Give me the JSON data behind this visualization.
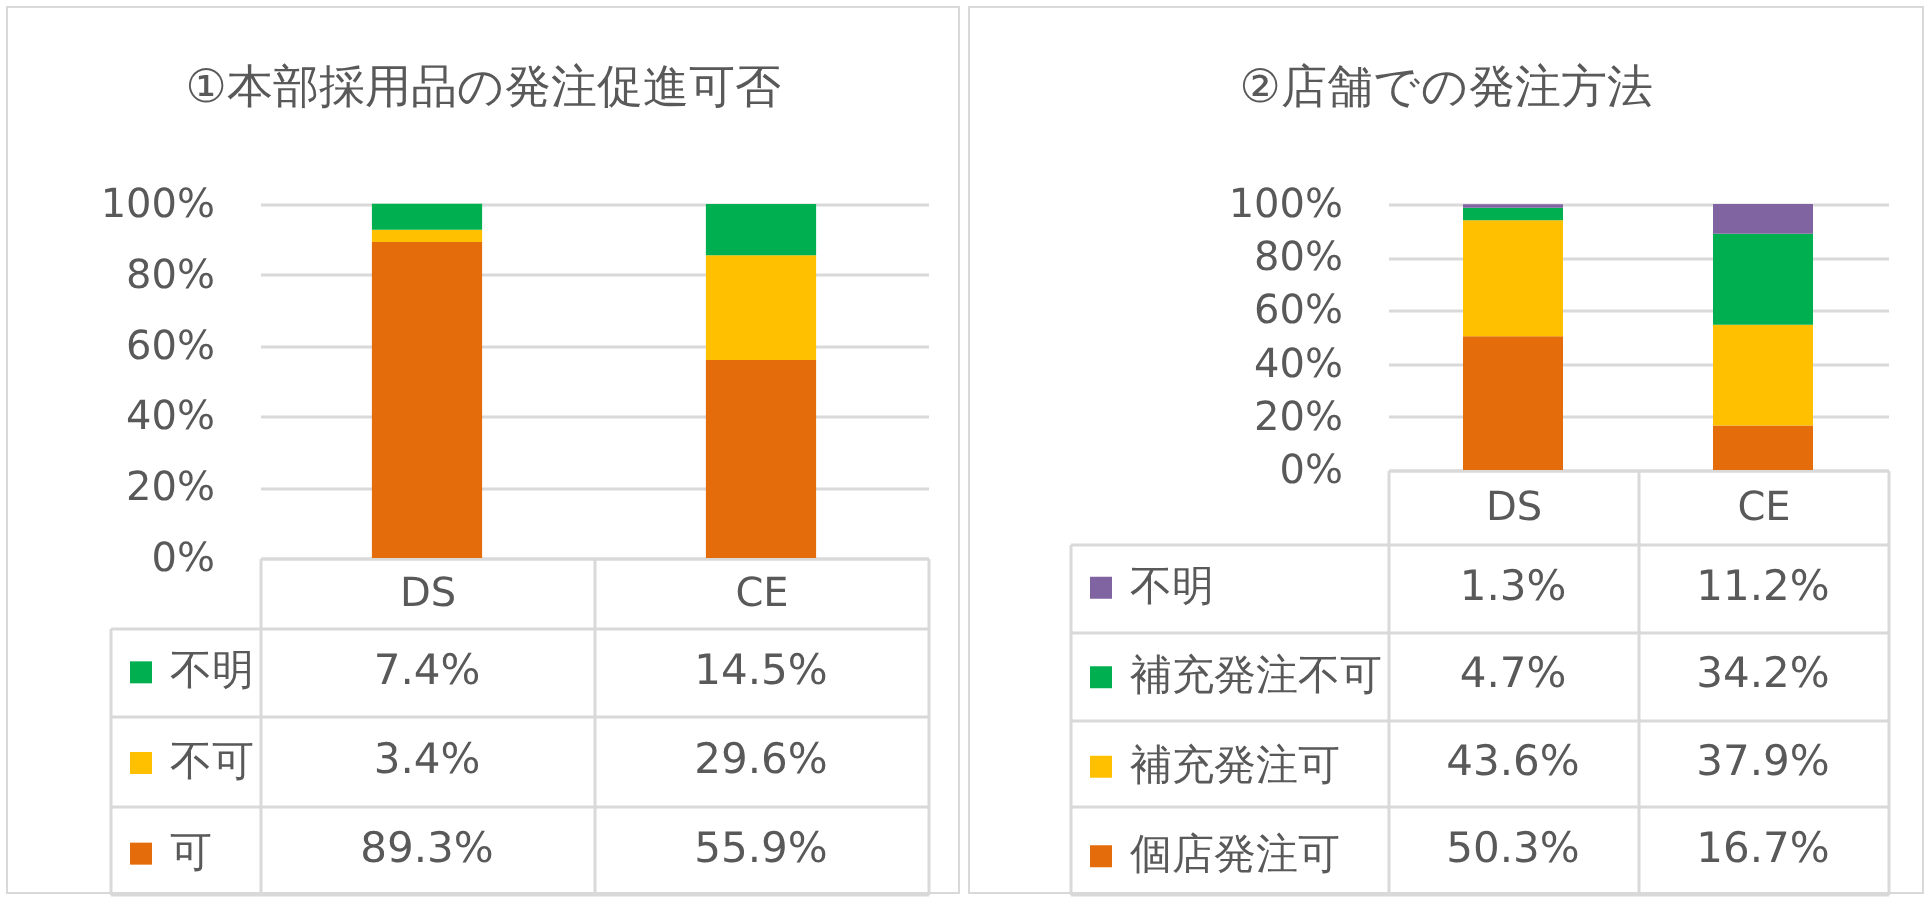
{
  "chart_data": [
    {
      "type": "bar",
      "title": "①本部採用品の発注促進可否",
      "categories": [
        "DS",
        "CE"
      ],
      "stacked": true,
      "series": [
        {
          "name": "可",
          "color": "#e46c0a",
          "values": [
            89.3,
            55.9
          ],
          "value_labels": [
            "89.3%",
            "55.9%"
          ]
        },
        {
          "name": "不可",
          "color": "#ffc000",
          "values": [
            3.4,
            29.6
          ],
          "value_labels": [
            "3.4%",
            "29.6%"
          ]
        },
        {
          "name": "不明",
          "color": "#00b050",
          "values": [
            7.4,
            14.5
          ],
          "value_labels": [
            "7.4%",
            "14.5%"
          ]
        }
      ],
      "ylim": [
        0,
        100
      ],
      "yticks": [
        {
          "value": 0,
          "label": "0%"
        },
        {
          "value": 20,
          "label": "20%"
        },
        {
          "value": 40,
          "label": "40%"
        },
        {
          "value": 60,
          "label": "60%"
        },
        {
          "value": 80,
          "label": "80%"
        },
        {
          "value": 100,
          "label": "100%"
        }
      ],
      "grid": "y",
      "legend": "bottom left"
    },
    {
      "type": "bar",
      "title": "②店舗での発注方法",
      "categories": [
        "DS",
        "CE"
      ],
      "stacked": true,
      "series": [
        {
          "name": "個店発注可",
          "color": "#e46c0a",
          "values": [
            50.3,
            16.7
          ],
          "value_labels": [
            "50.3%",
            "16.7%"
          ]
        },
        {
          "name": "補充発注可",
          "color": "#ffc000",
          "values": [
            43.6,
            37.9
          ],
          "value_labels": [
            "43.6%",
            "37.9%"
          ]
        },
        {
          "name": "補充発注不可",
          "color": "#00b050",
          "values": [
            4.7,
            34.2
          ],
          "value_labels": [
            "4.7%",
            "34.2%"
          ]
        },
        {
          "name": "不明",
          "color": "#8064a2",
          "values": [
            1.3,
            11.2
          ],
          "value_labels": [
            "1.3%",
            "11.2%"
          ]
        }
      ],
      "ylim": [
        0,
        100
      ],
      "yticks": [
        {
          "value": 0,
          "label": "0%"
        },
        {
          "value": 20,
          "label": "20%"
        },
        {
          "value": 40,
          "label": "40%"
        },
        {
          "value": 60,
          "label": "60%"
        },
        {
          "value": 80,
          "label": "80%"
        },
        {
          "value": 100,
          "label": "100%"
        }
      ],
      "grid": "y",
      "legend": "bottom left"
    }
  ]
}
